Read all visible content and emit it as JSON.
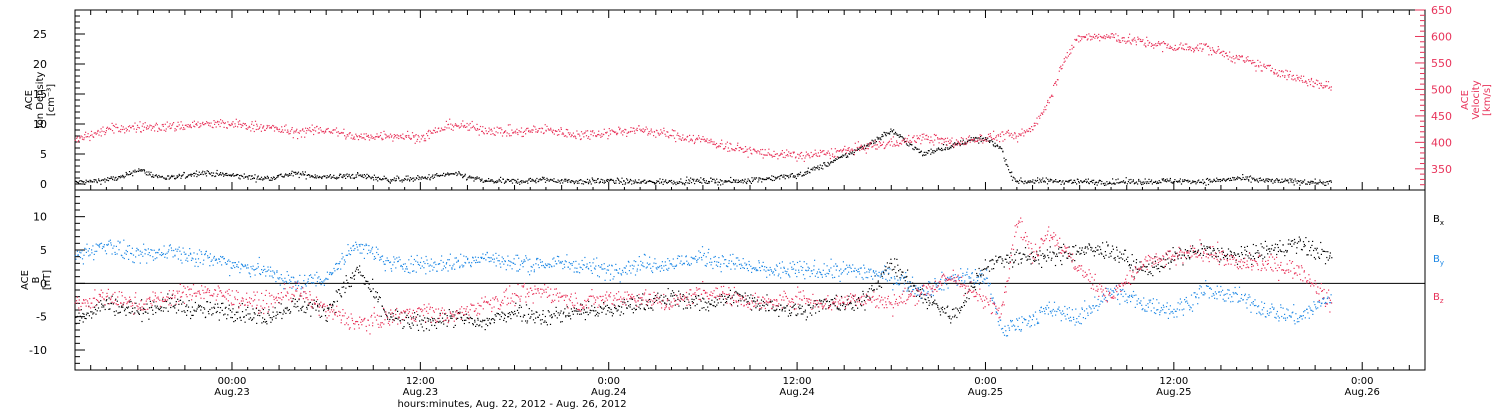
{
  "colors": {
    "black": "#000000",
    "red": "#e8335a",
    "blue": "#1e88e5",
    "axis": "#000000"
  },
  "time": {
    "x_start": "Aug. 22, 2012 14:00",
    "x_end": "Aug. 26, 2012 04:00",
    "xlabel": "hours:minutes, Aug. 22, 2012 - Aug. 26, 2012",
    "ticks": [
      {
        "time": "00:00",
        "date": "Aug.23",
        "hours": 10
      },
      {
        "time": "12:00",
        "date": "Aug.23",
        "hours": 22
      },
      {
        "time": "0:00",
        "date": "Aug.24",
        "hours": 34
      },
      {
        "time": "12:00",
        "date": "Aug.24",
        "hours": 46
      },
      {
        "time": "0:00",
        "date": "Aug.25",
        "hours": 58
      },
      {
        "time": "12:00",
        "date": "Aug.25",
        "hours": 70
      },
      {
        "time": "0:00",
        "date": "Aug.26",
        "hours": 82
      }
    ]
  },
  "chart_data": [
    {
      "type": "scatter",
      "panel": "plasma",
      "ylabel_left": [
        "ACE",
        "Ion Density",
        "[cm⁻³]"
      ],
      "ylabel_right": [
        "ACE",
        "Velocity",
        "[km/s]"
      ],
      "ylim_left": [
        -1,
        29
      ],
      "yticks_left": [
        0,
        5,
        10,
        15,
        20,
        25
      ],
      "ylim_right": [
        310,
        650
      ],
      "yticks_right": [
        350,
        400,
        450,
        500,
        550,
        600,
        650
      ],
      "series": [
        {
          "name": "",
          "axis": "left",
          "color": "black",
          "x_hours": [
            0,
            1,
            2,
            3,
            4,
            5,
            6,
            8,
            10,
            12,
            14,
            16,
            18,
            20,
            22,
            24,
            26,
            28,
            30,
            32,
            34,
            36,
            38,
            40,
            42,
            44,
            46,
            48,
            50,
            52,
            53,
            54,
            55,
            56,
            57,
            58,
            59,
            59.5,
            60,
            62,
            64,
            66,
            68,
            70,
            72,
            74,
            76,
            78,
            80
          ],
          "values": [
            0.3,
            0.5,
            0.8,
            1.2,
            2.5,
            1.5,
            1.0,
            2.0,
            1.5,
            1.0,
            1.8,
            1.2,
            1.5,
            0.8,
            1.0,
            1.8,
            0.6,
            0.5,
            0.8,
            0.5,
            0.6,
            0.4,
            0.5,
            0.6,
            0.5,
            1.0,
            1.5,
            3.5,
            6.0,
            9.0,
            7.0,
            5.0,
            6.0,
            6.5,
            7.5,
            7.5,
            6.0,
            2.0,
            0.5,
            0.6,
            0.5,
            0.4,
            0.5,
            0.6,
            0.5,
            1.0,
            0.6,
            0.5,
            0.3
          ]
        },
        {
          "name": "",
          "axis": "right",
          "color": "red",
          "x_hours": [
            0,
            2,
            4,
            6,
            8,
            10,
            12,
            14,
            16,
            18,
            20,
            22,
            24,
            26,
            28,
            30,
            32,
            34,
            36,
            38,
            40,
            42,
            44,
            46,
            48,
            50,
            52,
            54,
            56,
            58,
            59.5,
            60,
            61,
            62,
            63,
            64,
            66,
            68,
            70,
            72,
            74,
            76,
            78,
            80
          ],
          "values": [
            405,
            425,
            430,
            430,
            435,
            435,
            430,
            420,
            425,
            410,
            415,
            410,
            435,
            425,
            420,
            425,
            415,
            420,
            425,
            415,
            405,
            390,
            380,
            375,
            380,
            390,
            400,
            410,
            400,
            410,
            415,
            410,
            430,
            480,
            560,
            600,
            600,
            590,
            580,
            580,
            560,
            540,
            520,
            505
          ]
        }
      ]
    },
    {
      "type": "scatter",
      "panel": "magnetic",
      "ylabel_left": [
        "ACE",
        "B",
        "[nT]"
      ],
      "ylim": [
        -13,
        14
      ],
      "yticks": [
        -10,
        -5,
        0,
        5,
        10
      ],
      "zero_line": true,
      "series": [
        {
          "name": "Bx",
          "color": "black",
          "x_hours": [
            0,
            2,
            4,
            6,
            8,
            10,
            12,
            14,
            16,
            18,
            20,
            22,
            24,
            26,
            28,
            30,
            32,
            34,
            36,
            38,
            40,
            42,
            44,
            46,
            48,
            50,
            52,
            54,
            56,
            58,
            60,
            62,
            64,
            66,
            68,
            70,
            72,
            74,
            76,
            78,
            80
          ],
          "values": [
            -5,
            -3,
            -4,
            -3,
            -4,
            -4,
            -5,
            -3,
            -4,
            2,
            -5,
            -6,
            -5,
            -6,
            -4,
            -5,
            -4,
            -4,
            -3,
            -2,
            -3,
            -2,
            -3,
            -4,
            -3,
            -3,
            3,
            -2,
            -5,
            3,
            4,
            4,
            5,
            5,
            2,
            4,
            5,
            4,
            5,
            6,
            4
          ]
        },
        {
          "name": "By",
          "color": "blue",
          "x_hours": [
            0,
            2,
            4,
            6,
            8,
            10,
            12,
            14,
            16,
            18,
            20,
            22,
            24,
            26,
            28,
            30,
            32,
            34,
            36,
            38,
            40,
            42,
            44,
            46,
            48,
            50,
            52,
            54,
            56,
            58,
            59,
            60,
            62,
            64,
            66,
            68,
            70,
            72,
            74,
            76,
            78,
            80
          ],
          "values": [
            4,
            6,
            4,
            5,
            4,
            3,
            2,
            0,
            1,
            6,
            3,
            3,
            3,
            4,
            3,
            3,
            3,
            2,
            3,
            3,
            4,
            3,
            2,
            2,
            2,
            2,
            1,
            -1,
            1,
            1,
            -7,
            -6,
            -4,
            -5,
            -1,
            -3,
            -4,
            -1,
            -2,
            -4,
            -5,
            -2
          ]
        },
        {
          "name": "Bz",
          "color": "red",
          "x_hours": [
            0,
            2,
            4,
            6,
            8,
            10,
            12,
            14,
            16,
            18,
            20,
            22,
            24,
            26,
            28,
            30,
            32,
            34,
            36,
            38,
            40,
            42,
            44,
            46,
            48,
            50,
            52,
            54,
            56,
            58,
            59,
            60,
            61,
            62,
            64,
            66,
            68,
            70,
            72,
            74,
            76,
            78,
            80
          ],
          "values": [
            -3,
            -2,
            -3,
            -2,
            -1,
            -2,
            -3,
            -1,
            -4,
            -6,
            -5,
            -4,
            -5,
            -3,
            -2,
            -1,
            -3,
            -2,
            -2,
            -3,
            -1,
            -2,
            -3,
            -2,
            -3,
            -2,
            -3,
            -1,
            1,
            -3,
            -4,
            10,
            4,
            8,
            2,
            -2,
            3,
            4,
            5,
            3,
            3,
            2,
            -3
          ]
        }
      ]
    }
  ]
}
